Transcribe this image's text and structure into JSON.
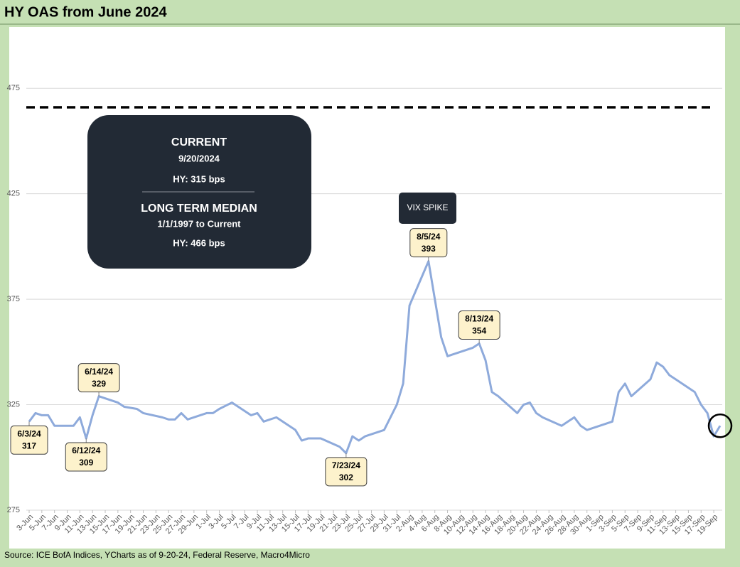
{
  "chart_data": {
    "type": "line",
    "title": "HY OAS from June 2024",
    "source": "Source: ICE BofA Indices, YCharts as of 9-20-24, Federal Reserve, Macro4Micro",
    "x": [
      "3-Jun",
      "4-Jun",
      "5-Jun",
      "6-Jun",
      "7-Jun",
      "10-Jun",
      "11-Jun",
      "12-Jun",
      "13-Jun",
      "14-Jun",
      "17-Jun",
      "18-Jun",
      "20-Jun",
      "21-Jun",
      "24-Jun",
      "25-Jun",
      "26-Jun",
      "27-Jun",
      "28-Jun",
      "1-Jul",
      "2-Jul",
      "3-Jul",
      "5-Jul",
      "8-Jul",
      "9-Jul",
      "10-Jul",
      "11-Jul",
      "12-Jul",
      "15-Jul",
      "16-Jul",
      "17-Jul",
      "18-Jul",
      "19-Jul",
      "22-Jul",
      "23-Jul",
      "24-Jul",
      "25-Jul",
      "26-Jul",
      "29-Jul",
      "30-Jul",
      "31-Jul",
      "1-Aug",
      "2-Aug",
      "5-Aug",
      "6-Aug",
      "7-Aug",
      "8-Aug",
      "9-Aug",
      "12-Aug",
      "13-Aug",
      "14-Aug",
      "15-Aug",
      "16-Aug",
      "19-Aug",
      "20-Aug",
      "21-Aug",
      "22-Aug",
      "23-Aug",
      "26-Aug",
      "27-Aug",
      "28-Aug",
      "29-Aug",
      "30-Aug",
      "3-Sep",
      "4-Sep",
      "5-Sep",
      "6-Sep",
      "9-Sep",
      "10-Sep",
      "11-Sep",
      "12-Sep",
      "13-Sep",
      "16-Sep",
      "17-Sep",
      "18-Sep",
      "19-Sep",
      "20-Sep"
    ],
    "series": [
      {
        "name": "HY OAS",
        "color": "#8eaadb",
        "values": [
          317,
          321,
          320,
          320,
          315,
          315,
          319,
          309,
          320,
          329,
          326,
          324,
          323,
          321,
          319,
          318,
          318,
          321,
          318,
          321,
          321,
          323,
          326,
          320,
          321,
          317,
          318,
          319,
          313,
          308,
          309,
          309,
          309,
          305,
          302,
          310,
          308,
          310,
          313,
          319,
          325,
          335,
          372,
          393,
          375,
          357,
          348,
          349,
          352,
          354,
          346,
          331,
          329,
          321,
          325,
          326,
          321,
          319,
          315,
          317,
          319,
          315,
          313,
          317,
          331,
          335,
          329,
          337,
          345,
          343,
          339,
          337,
          331,
          325,
          321,
          310,
          315
        ]
      }
    ],
    "xticks": [
      "3-Jun",
      "5-Jun",
      "7-Jun",
      "9-Jun",
      "11-Jun",
      "13-Jun",
      "15-Jun",
      "17-Jun",
      "19-Jun",
      "21-Jun",
      "23-Jun",
      "25-Jun",
      "27-Jun",
      "29-Jun",
      "1-Jul",
      "3-Jul",
      "5-Jul",
      "7-Jul",
      "9-Jul",
      "11-Jul",
      "13-Jul",
      "15-Jul",
      "17-Jul",
      "19-Jul",
      "21-Jul",
      "23-Jul",
      "25-Jul",
      "27-Jul",
      "29-Jul",
      "31-Jul",
      "2-Aug",
      "4-Aug",
      "6-Aug",
      "8-Aug",
      "10-Aug",
      "12-Aug",
      "14-Aug",
      "16-Aug",
      "18-Aug",
      "20-Aug",
      "22-Aug",
      "24-Aug",
      "26-Aug",
      "28-Aug",
      "30-Aug",
      "1-Sep",
      "3-Sep",
      "5-Sep",
      "7-Sep",
      "9-Sep",
      "11-Sep",
      "13-Sep",
      "15-Sep",
      "17-Sep",
      "19-Sep"
    ],
    "ylim": [
      275,
      500
    ],
    "yticks": [
      275,
      325,
      375,
      425,
      475
    ],
    "grid": true,
    "reference_line": {
      "value": 466,
      "style": "dashed",
      "color": "#000000"
    },
    "annotations": [
      {
        "label": "6/3/24",
        "value": 317
      },
      {
        "label": "6/12/24",
        "value": 309
      },
      {
        "label": "6/14/24",
        "value": 329
      },
      {
        "label": "7/23/24",
        "value": 302
      },
      {
        "label": "8/5/24",
        "value": 393
      },
      {
        "label": "8/13/24",
        "value": 354
      }
    ],
    "info_box": {
      "current_title": "CURRENT",
      "current_date": "9/20/2024",
      "current_value": "HY: 315 bps",
      "median_title": "LONG TERM MEDIAN",
      "median_period": "1/1/1997 to Current",
      "median_value": "HY: 466 bps"
    },
    "event_label": "VIX SPIKE"
  }
}
